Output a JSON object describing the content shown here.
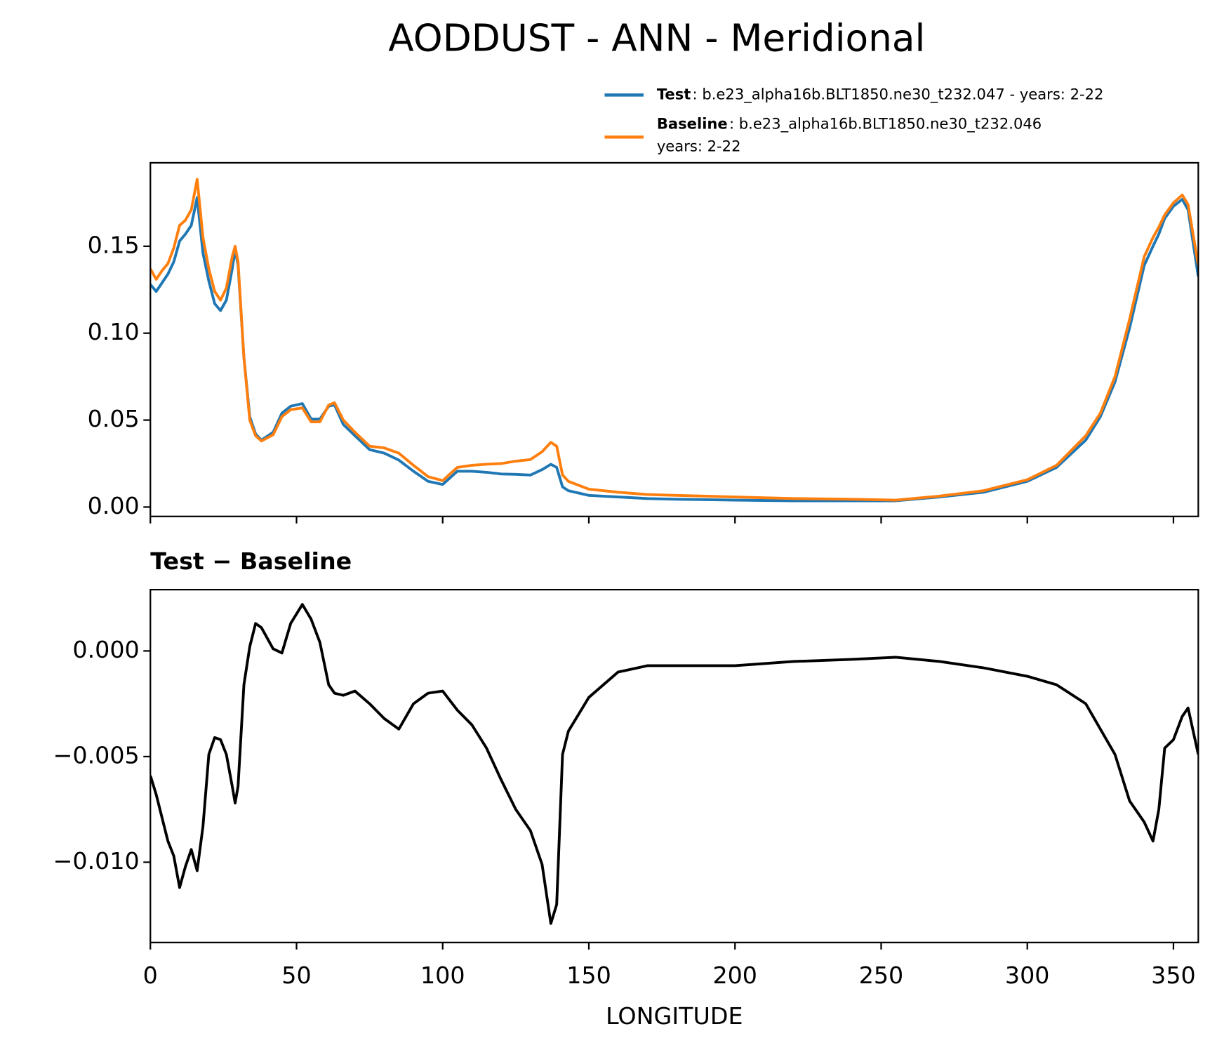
{
  "title": "AODDUST - ANN - Meridional",
  "chart_data": [
    {
      "type": "line",
      "x": [
        0,
        2,
        4,
        6,
        8,
        10,
        12,
        14,
        16,
        18,
        20,
        22,
        24,
        26,
        28,
        29,
        30,
        32,
        34,
        36,
        38,
        42,
        45,
        48,
        52,
        55,
        58,
        61,
        63,
        66,
        70,
        75,
        80,
        85,
        90,
        95,
        100,
        105,
        110,
        115,
        120,
        125,
        130,
        134,
        137,
        139,
        141,
        143,
        150,
        160,
        170,
        180,
        200,
        220,
        240,
        255,
        270,
        285,
        300,
        310,
        320,
        325,
        330,
        335,
        340,
        343,
        345,
        347,
        350,
        353,
        355,
        358.5
      ],
      "xlim": [
        0,
        358.5
      ],
      "xticks": [
        0,
        50,
        100,
        150,
        200,
        250,
        300,
        350
      ],
      "ylim": [
        -0.0054,
        0.198
      ],
      "yticks": [
        {
          "value": 0,
          "label": "0.00"
        },
        {
          "value": 0.05,
          "label": "0.05"
        },
        {
          "value": 0.1,
          "label": "0.10"
        },
        {
          "value": 0.15,
          "label": "0.15"
        }
      ],
      "legend": "upper right",
      "series": [
        {
          "name": "Test",
          "description": [
            ": b.e23_alpha16b.BLT1850.ne30_t232.047 - years: 2-22"
          ],
          "color": "#1f77b4",
          "values": [
            0.128,
            0.124,
            0.129,
            0.134,
            0.141,
            0.153,
            0.157,
            0.162,
            0.178,
            0.146,
            0.13,
            0.117,
            0.113,
            0.119,
            0.137,
            0.148,
            0.139,
            0.086,
            0.052,
            0.042,
            0.0385,
            0.043,
            0.054,
            0.058,
            0.0595,
            0.0506,
            0.0506,
            0.058,
            0.0587,
            0.0475,
            0.041,
            0.033,
            0.031,
            0.027,
            0.0206,
            0.0148,
            0.013,
            0.0206,
            0.0206,
            0.02,
            0.019,
            0.0188,
            0.0184,
            0.0215,
            0.0246,
            0.0228,
            0.0116,
            0.0094,
            0.0067,
            0.0058,
            0.0049,
            0.0045,
            0.004,
            0.0036,
            0.0036,
            0.0036,
            0.0058,
            0.0085,
            0.0148,
            0.0228,
            0.0385,
            0.052,
            0.072,
            0.103,
            0.139,
            0.15,
            0.157,
            0.166,
            0.173,
            0.177,
            0.171,
            0.1325
          ]
        },
        {
          "name": "Baseline",
          "description": [
            ": b.e23_alpha16b.BLT1850.ne30_t232.046",
            "years: 2-22"
          ],
          "color": "#ff7f0e",
          "values": [
            0.137,
            0.131,
            0.136,
            0.14,
            0.149,
            0.162,
            0.165,
            0.171,
            0.1885,
            0.155,
            0.137,
            0.124,
            0.119,
            0.126,
            0.144,
            0.15,
            0.141,
            0.086,
            0.05,
            0.041,
            0.038,
            0.0416,
            0.052,
            0.056,
            0.057,
            0.049,
            0.049,
            0.0587,
            0.06,
            0.05,
            0.043,
            0.035,
            0.034,
            0.031,
            0.024,
            0.0175,
            0.0152,
            0.0228,
            0.024,
            0.0246,
            0.025,
            0.0264,
            0.0273,
            0.0318,
            0.0372,
            0.035,
            0.0184,
            0.0148,
            0.0103,
            0.0085,
            0.0072,
            0.0067,
            0.0058,
            0.0049,
            0.0045,
            0.004,
            0.0063,
            0.0094,
            0.0157,
            0.024,
            0.041,
            0.054,
            0.075,
            0.108,
            0.144,
            0.155,
            0.161,
            0.168,
            0.175,
            0.1795,
            0.174,
            0.139
          ]
        }
      ]
    },
    {
      "type": "line",
      "title": "Test − Baseline",
      "xlabel": "LONGITUDE",
      "x": [
        0,
        2,
        4,
        6,
        8,
        10,
        12,
        14,
        16,
        18,
        20,
        22,
        24,
        26,
        28,
        29,
        30,
        32,
        34,
        36,
        38,
        42,
        45,
        48,
        52,
        55,
        58,
        61,
        63,
        66,
        70,
        75,
        80,
        85,
        90,
        95,
        100,
        105,
        110,
        115,
        120,
        125,
        130,
        134,
        137,
        139,
        141,
        143,
        150,
        160,
        170,
        180,
        200,
        220,
        240,
        255,
        270,
        285,
        300,
        310,
        320,
        325,
        330,
        335,
        340,
        343,
        345,
        347,
        350,
        353,
        355,
        358.5
      ],
      "xlim": [
        0,
        358.5
      ],
      "xticks": [
        0,
        50,
        100,
        150,
        200,
        250,
        300,
        350
      ],
      "ylim": [
        -0.0138,
        0.0029
      ],
      "yticks": [
        {
          "value": -0.01,
          "label": "−0.010"
        },
        {
          "value": -0.005,
          "label": "−0.005"
        },
        {
          "value": 0,
          "label": "0.000"
        }
      ],
      "series": [
        {
          "color": "#000000",
          "values": [
            -0.0059,
            -0.0068,
            -0.0079,
            -0.009,
            -0.0097,
            -0.0112,
            -0.0102,
            -0.0094,
            -0.0104,
            -0.0083,
            -0.0049,
            -0.0041,
            -0.0042,
            -0.0049,
            -0.0064,
            -0.0072,
            -0.0064,
            -0.0016,
            0.0002,
            0.0013,
            0.0011,
            0.0001,
            -0.0001,
            0.0013,
            0.0022,
            0.0015,
            0.0004,
            -0.0016,
            -0.002,
            -0.0021,
            -0.0019,
            -0.0025,
            -0.0032,
            -0.0037,
            -0.0025,
            -0.002,
            -0.0019,
            -0.0028,
            -0.0035,
            -0.0046,
            -0.0061,
            -0.0075,
            -0.0085,
            -0.0101,
            -0.0129,
            -0.012,
            -0.0049,
            -0.0038,
            -0.0022,
            -0.001,
            -0.0007,
            -0.0007,
            -0.0007,
            -0.0005,
            -0.0004,
            -0.0003,
            -0.0005,
            -0.0008,
            -0.0012,
            -0.0016,
            -0.0025,
            -0.0037,
            -0.0049,
            -0.0071,
            -0.0081,
            -0.009,
            -0.0075,
            -0.0046,
            -0.0042,
            -0.0031,
            -0.0027,
            -0.0049
          ]
        }
      ]
    }
  ]
}
